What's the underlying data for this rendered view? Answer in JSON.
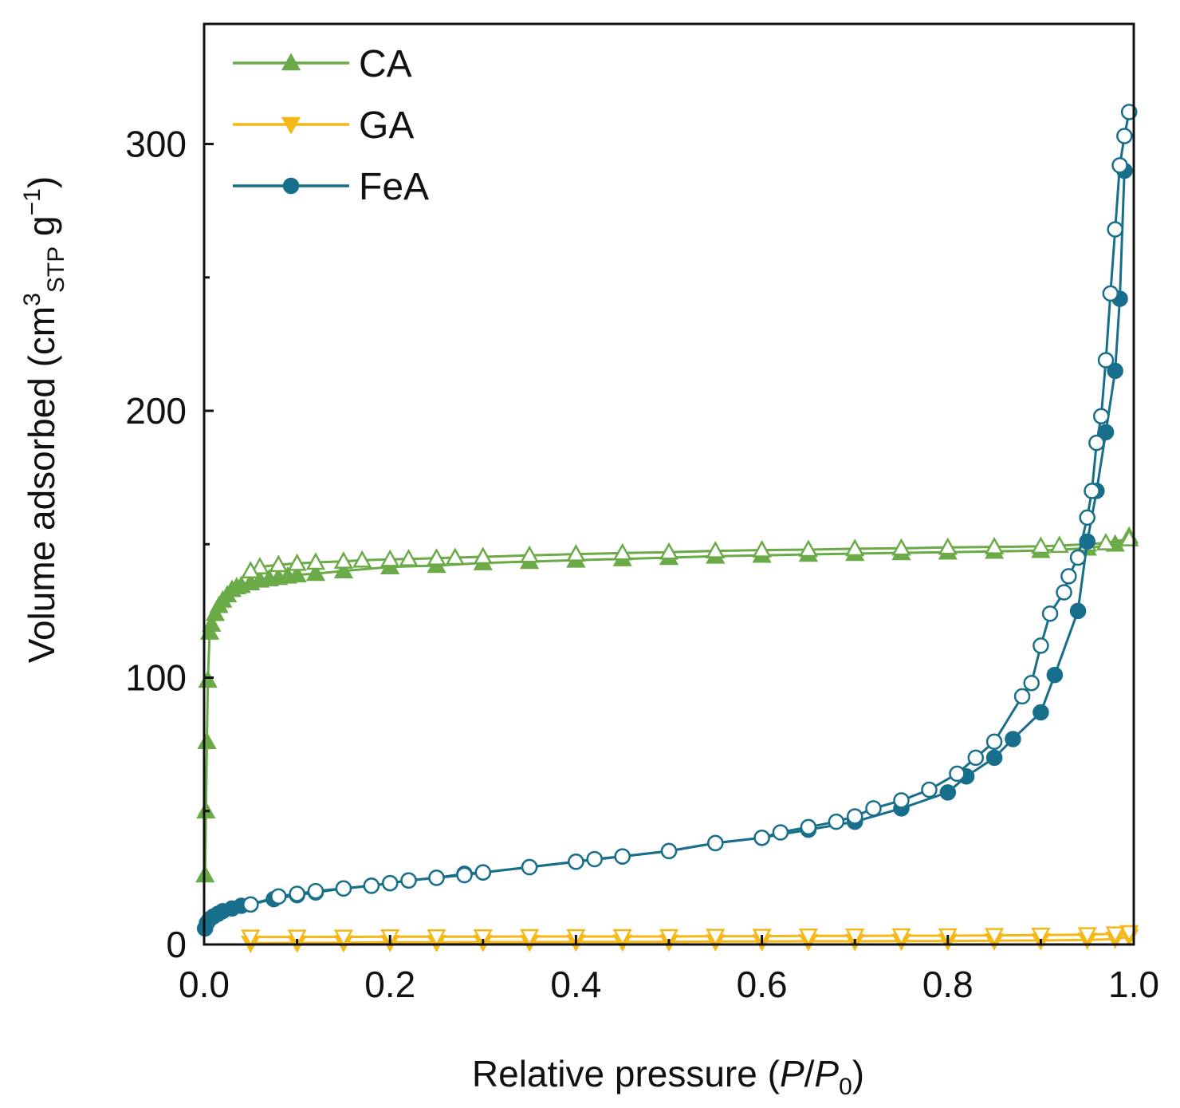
{
  "chart_data": {
    "type": "line",
    "title": "",
    "xlabel": {
      "prefix": "Relative pressure (",
      "var1": "P",
      "slash": "/",
      "var2": "P",
      "sub": "0",
      "suffix": ")"
    },
    "ylabel": {
      "main": "Volume adsorbed (cm",
      "sup1": "3",
      "sub1": "STP",
      "mid": " g",
      "sup2": "−1",
      "end": ")"
    },
    "xlim": [
      0,
      1.0
    ],
    "ylim": [
      0,
      345
    ],
    "x_ticks": [
      0.0,
      0.2,
      0.4,
      0.6,
      0.8,
      1.0
    ],
    "x_tick_labels": [
      "0.0",
      "0.2",
      "0.4",
      "0.6",
      "0.8",
      "1.0"
    ],
    "y_ticks": [
      0,
      100,
      200,
      300
    ],
    "y_tick_labels": [
      "0",
      "100",
      "200",
      "300"
    ],
    "legend_position": "top-left",
    "legend": [
      "CA",
      "GA",
      "FeA"
    ],
    "series": [
      {
        "name": "CA",
        "color": "#6aaa47",
        "marker": "triangle-up",
        "adsorption": {
          "x": [
            0.001,
            0.002,
            0.003,
            0.004,
            0.006,
            0.008,
            0.012,
            0.016,
            0.02,
            0.025,
            0.03,
            0.035,
            0.04,
            0.05,
            0.06,
            0.07,
            0.08,
            0.09,
            0.1,
            0.12,
            0.15,
            0.2,
            0.25,
            0.3,
            0.35,
            0.4,
            0.45,
            0.5,
            0.55,
            0.6,
            0.65,
            0.7,
            0.75,
            0.8,
            0.85,
            0.9,
            0.95,
            0.98,
            0.995
          ],
          "y": [
            26,
            50,
            76,
            99,
            117,
            120,
            124,
            127,
            129,
            131,
            133,
            134,
            134.5,
            135.5,
            136.5,
            137,
            137.5,
            138,
            138.5,
            139,
            140,
            141.5,
            142,
            143,
            143.5,
            144,
            144.5,
            145,
            145.5,
            145.8,
            146.2,
            146.5,
            146.8,
            147,
            147.3,
            147.6,
            148.5,
            150,
            153
          ]
        },
        "desorption": {
          "x": [
            0.995,
            0.97,
            0.95,
            0.92,
            0.9,
            0.85,
            0.8,
            0.75,
            0.7,
            0.65,
            0.6,
            0.55,
            0.5,
            0.45,
            0.4,
            0.35,
            0.3,
            0.27,
            0.25,
            0.22,
            0.2,
            0.17,
            0.15,
            0.12,
            0.1,
            0.08,
            0.06,
            0.05
          ],
          "y": [
            152,
            150.5,
            150,
            149.5,
            149.2,
            149,
            148.8,
            148.5,
            148.3,
            148,
            147.8,
            147.5,
            147,
            146.7,
            146.3,
            145.8,
            145.3,
            145,
            144.8,
            144.5,
            144.3,
            144,
            143.6,
            143.2,
            142.8,
            142.3,
            141.5,
            140
          ]
        }
      },
      {
        "name": "GA",
        "color": "#f4b818",
        "marker": "triangle-down",
        "adsorption": {
          "x": [
            0.05,
            0.1,
            0.15,
            0.2,
            0.25,
            0.3,
            0.35,
            0.4,
            0.45,
            0.5,
            0.55,
            0.6,
            0.65,
            0.7,
            0.75,
            0.8,
            0.85,
            0.9,
            0.95,
            0.98,
            0.995
          ],
          "y": [
            0.5,
            0.6,
            0.7,
            0.8,
            0.8,
            0.9,
            0.9,
            1.0,
            1.0,
            1.0,
            1.1,
            1.1,
            1.2,
            1.2,
            1.3,
            1.3,
            1.4,
            1.5,
            1.7,
            2.0,
            3.0
          ]
        },
        "desorption": {
          "x": [
            0.995,
            0.98,
            0.95,
            0.9,
            0.85,
            0.8,
            0.75,
            0.7,
            0.65,
            0.6,
            0.55,
            0.5,
            0.45,
            0.4,
            0.35,
            0.3,
            0.25,
            0.2,
            0.15,
            0.1,
            0.05
          ],
          "y": [
            4.5,
            4.0,
            3.7,
            3.5,
            3.4,
            3.3,
            3.3,
            3.2,
            3.2,
            3.1,
            3.1,
            3.0,
            3.0,
            3.0,
            3.0,
            2.9,
            2.9,
            2.9,
            2.8,
            2.8,
            2.8
          ]
        }
      },
      {
        "name": "FeA",
        "color": "#176f8b",
        "marker": "circle",
        "adsorption": {
          "x": [
            0.001,
            0.003,
            0.006,
            0.01,
            0.015,
            0.02,
            0.03,
            0.04,
            0.05,
            0.075,
            0.1,
            0.12,
            0.15,
            0.18,
            0.2,
            0.22,
            0.25,
            0.28,
            0.3,
            0.35,
            0.4,
            0.45,
            0.5,
            0.55,
            0.6,
            0.65,
            0.7,
            0.75,
            0.8,
            0.82,
            0.85,
            0.87,
            0.9,
            0.915,
            0.94,
            0.95,
            0.96,
            0.97,
            0.98,
            0.985,
            0.99
          ],
          "y": [
            6,
            8,
            9.5,
            10.5,
            11.5,
            12.5,
            13.5,
            14.5,
            15,
            17,
            18.5,
            19.5,
            21,
            22,
            23,
            24,
            25,
            26.5,
            27,
            29,
            31,
            33,
            35,
            38,
            40,
            43,
            46,
            51,
            57,
            63,
            70,
            77,
            87,
            101,
            125,
            151,
            170,
            192,
            215,
            242,
            290
          ]
        },
        "desorption": {
          "x": [
            0.995,
            0.99,
            0.985,
            0.98,
            0.975,
            0.97,
            0.965,
            0.96,
            0.955,
            0.95,
            0.94,
            0.93,
            0.925,
            0.91,
            0.9,
            0.89,
            0.88,
            0.85,
            0.83,
            0.81,
            0.78,
            0.75,
            0.72,
            0.7,
            0.68,
            0.65,
            0.62,
            0.6,
            0.55,
            0.5,
            0.45,
            0.42,
            0.4,
            0.35,
            0.3,
            0.28,
            0.25,
            0.22,
            0.2,
            0.18,
            0.15,
            0.12,
            0.1,
            0.08,
            0.05
          ],
          "y": [
            312,
            303,
            292,
            268,
            244,
            219,
            198,
            188,
            170,
            160,
            145,
            138,
            132,
            124,
            112,
            98,
            93,
            76,
            70,
            64,
            58,
            54,
            51,
            48,
            46,
            44,
            42,
            40,
            38,
            35,
            33,
            32,
            31,
            29,
            27,
            26,
            25,
            24,
            23,
            22,
            21,
            20,
            19,
            18,
            15
          ]
        }
      }
    ]
  }
}
